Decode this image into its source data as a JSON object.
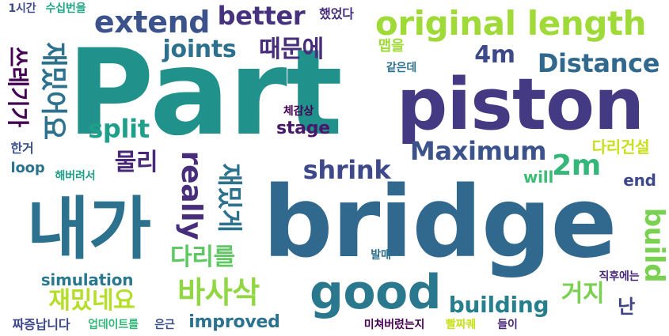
{
  "background_color": "#ffffff",
  "words": [
    {
      "text": "Part",
      "color": "#21918c",
      "orientation": "horizontal"
    },
    {
      "text": "bridge",
      "color": "#31688e",
      "orientation": "horizontal"
    },
    {
      "text": "piston",
      "color": "#443983",
      "orientation": "horizontal"
    },
    {
      "text": "내가",
      "color": "#2c728e",
      "orientation": "horizontal"
    },
    {
      "text": "original length",
      "color": "#a0da39",
      "orientation": "horizontal"
    },
    {
      "text": "good",
      "color": "#2a788e",
      "orientation": "horizontal"
    },
    {
      "text": "extend",
      "color": "#3b528b",
      "orientation": "horizontal"
    },
    {
      "text": "better",
      "color": "#46327e",
      "orientation": "horizontal"
    },
    {
      "text": "joints",
      "color": "#2d708e",
      "orientation": "horizontal"
    },
    {
      "text": "때문에",
      "color": "#472d7b",
      "orientation": "horizontal"
    },
    {
      "text": "4m",
      "color": "#3e4989",
      "orientation": "horizontal"
    },
    {
      "text": "Distance",
      "color": "#31688e",
      "orientation": "horizontal"
    },
    {
      "text": "split",
      "color": "#1f9e89",
      "orientation": "horizontal"
    },
    {
      "text": "stage",
      "color": "#48186a",
      "orientation": "horizontal"
    },
    {
      "text": "Maximum",
      "color": "#3b528b",
      "orientation": "horizontal"
    },
    {
      "text": "물리",
      "color": "#482878",
      "orientation": "horizontal"
    },
    {
      "text": "shrink",
      "color": "#3e4989",
      "orientation": "horizontal"
    },
    {
      "text": "2m",
      "color": "#35b779",
      "orientation": "horizontal"
    },
    {
      "text": "다리건설",
      "color": "#c8e020",
      "orientation": "horizontal"
    },
    {
      "text": "will",
      "color": "#3dbc74",
      "orientation": "horizontal"
    },
    {
      "text": "end",
      "color": "#3e4989",
      "orientation": "horizontal"
    },
    {
      "text": "다리를",
      "color": "#5ec962",
      "orientation": "horizontal"
    },
    {
      "text": "simulation",
      "color": "#2a788e",
      "orientation": "horizontal"
    },
    {
      "text": "재밌네요",
      "color": "#b5de2b",
      "orientation": "horizontal"
    },
    {
      "text": "바사삭",
      "color": "#90d743",
      "orientation": "horizontal"
    },
    {
      "text": "building",
      "color": "#277f8e",
      "orientation": "horizontal"
    },
    {
      "text": "거지",
      "color": "#7ad151",
      "orientation": "horizontal"
    },
    {
      "text": "improved",
      "color": "#2c728e",
      "orientation": "horizontal"
    },
    {
      "text": "난",
      "color": "#414487",
      "orientation": "horizontal"
    },
    {
      "text": "1시간",
      "color": "#3e4989",
      "orientation": "horizontal"
    },
    {
      "text": "수십번을",
      "color": "#20a486",
      "orientation": "horizontal"
    },
    {
      "text": "했었다",
      "color": "#472d7b",
      "orientation": "horizontal"
    },
    {
      "text": "맵을",
      "color": "#a0da39",
      "orientation": "horizontal"
    },
    {
      "text": "같은데",
      "color": "#2c728e",
      "orientation": "horizontal"
    },
    {
      "text": "체감상",
      "color": "#440154",
      "orientation": "horizontal"
    },
    {
      "text": "한거",
      "color": "#3b528b",
      "orientation": "horizontal"
    },
    {
      "text": "loop",
      "color": "#2c728e",
      "orientation": "horizontal"
    },
    {
      "text": "해버려서",
      "color": "#1f9e89",
      "orientation": "horizontal"
    },
    {
      "text": "발매",
      "color": "#2d708e",
      "orientation": "horizontal"
    },
    {
      "text": "직후에는",
      "color": "#482878",
      "orientation": "horizontal"
    },
    {
      "text": "짜증납니다",
      "color": "#3e4989",
      "orientation": "horizontal"
    },
    {
      "text": "업데이트를",
      "color": "#35b779",
      "orientation": "horizontal"
    },
    {
      "text": "은근",
      "color": "#3b528b",
      "orientation": "horizontal"
    },
    {
      "text": "미쳐버렸는지",
      "color": "#440154",
      "orientation": "horizontal"
    },
    {
      "text": "빨짜퀘",
      "color": "#c8e020",
      "orientation": "horizontal"
    },
    {
      "text": "들이",
      "color": "#482878",
      "orientation": "horizontal"
    },
    {
      "text": "재밌어요",
      "color": "#2c728e",
      "orientation": "vertical"
    },
    {
      "text": "재밌게",
      "color": "#2c728e",
      "orientation": "vertical"
    },
    {
      "text": "really",
      "color": "#472d7b",
      "orientation": "vertical"
    },
    {
      "text": "build",
      "color": "#7ad151",
      "orientation": "vertical"
    },
    {
      "text": "쓰레기가",
      "color": "#440154",
      "orientation": "vertical"
    }
  ]
}
